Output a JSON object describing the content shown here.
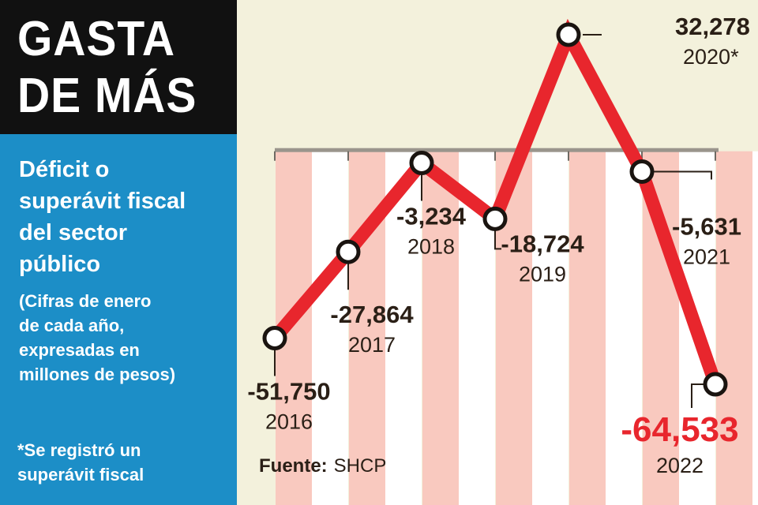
{
  "header": {
    "title_lines": [
      "GASTA",
      "DE MÁS"
    ],
    "subtitle_lines": [
      "Déficit o",
      "superávit fiscal",
      "del sector",
      "público"
    ],
    "units_lines": [
      "(Cifras de enero",
      "de cada año,",
      "expresadas en",
      "millones de pesos)"
    ],
    "footnote_lines": [
      "*Se registró un",
      "superávit fiscal"
    ]
  },
  "source": {
    "label": "Fuente:",
    "value": "SHCP"
  },
  "colors": {
    "line": "#e8262d",
    "highlight": "#e8262d",
    "left_panel": "#1c8ec7",
    "title_bg": "#111111",
    "band_pink": "#f9c9bf",
    "band_cream": "#f3f1dc"
  },
  "chart_data": {
    "type": "line",
    "title": "",
    "xlabel": "",
    "ylabel": "",
    "categories": [
      "2016",
      "2017",
      "2018",
      "2019",
      "2020*",
      "2021",
      "2022"
    ],
    "values": [
      -51750,
      -27864,
      -3234,
      -18724,
      32278,
      -5631,
      -64533
    ],
    "value_labels": [
      "-51,750",
      "-27,864",
      "-3,234",
      "-18,724",
      "32,278",
      "-5,631",
      "-64,533"
    ],
    "highlight_index": 6,
    "ylim": [
      -64533,
      32278
    ],
    "grid": false,
    "legend": "none"
  }
}
